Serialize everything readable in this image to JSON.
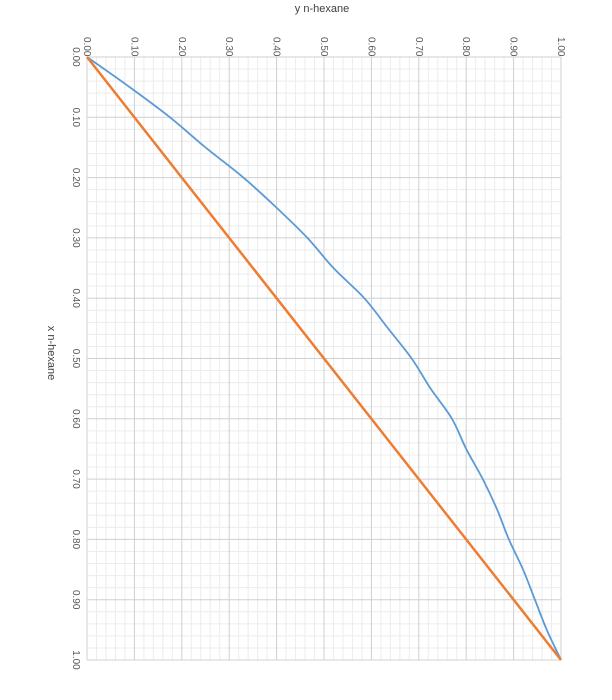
{
  "chart_data": {
    "type": "line",
    "orientation": "rotated-90-clockwise",
    "x_axis": {
      "label": "x n-hexane",
      "range": [
        0,
        1
      ],
      "ticks": [
        "0.00",
        "0.10",
        "0.20",
        "0.30",
        "0.40",
        "0.50",
        "0.60",
        "0.70",
        "0.80",
        "0.90",
        "1.00"
      ]
    },
    "y_axis": {
      "label": "y n-hexane",
      "range": [
        0,
        1
      ],
      "ticks": [
        "0.00",
        "0.10",
        "0.20",
        "0.30",
        "0.40",
        "0.50",
        "0.60",
        "0.70",
        "0.80",
        "0.90",
        "1.00"
      ]
    },
    "grid": "major and minor",
    "series": [
      {
        "color": "#5B9BD5",
        "x": [
          0.0,
          0.05,
          0.1,
          0.15,
          0.2,
          0.25,
          0.3,
          0.35,
          0.4,
          0.45,
          0.5,
          0.55,
          0.6,
          0.65,
          0.7,
          0.75,
          0.8,
          0.85,
          0.9,
          0.95,
          1.0
        ],
        "y": [
          0.0,
          0.09,
          0.175,
          0.25,
          0.33,
          0.4,
          0.465,
          0.52,
          0.585,
          0.635,
          0.685,
          0.725,
          0.77,
          0.8,
          0.835,
          0.865,
          0.89,
          0.92,
          0.945,
          0.97,
          1.0
        ]
      },
      {
        "color": "#ED7D31",
        "x": [
          0.0,
          1.0
        ],
        "y": [
          0.0,
          1.0
        ]
      }
    ]
  }
}
